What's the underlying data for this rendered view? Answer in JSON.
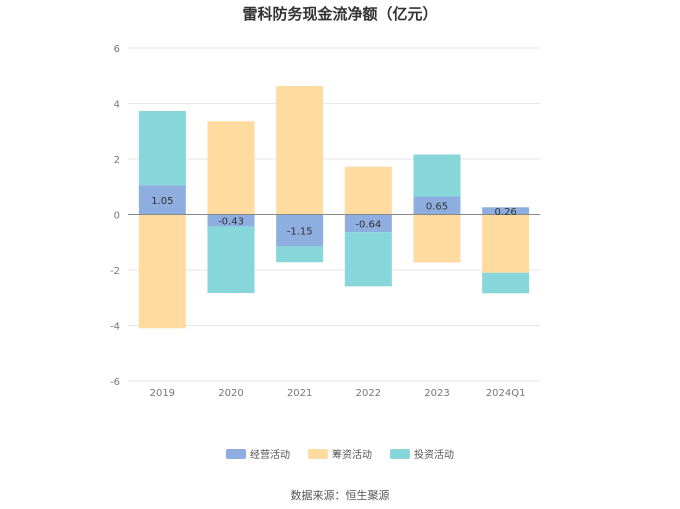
{
  "chart_data": {
    "type": "bar",
    "stacked": true,
    "title": "雷科防务现金流净额（亿元）",
    "categories": [
      "2019",
      "2020",
      "2021",
      "2022",
      "2023",
      "2024Q1"
    ],
    "series": [
      {
        "name": "经营活动",
        "color": "#8eaee0",
        "values": [
          1.05,
          -0.43,
          -1.15,
          -0.64,
          0.65,
          0.26
        ]
      },
      {
        "name": "筹资活动",
        "color": "#ffdba0",
        "values": [
          -4.1,
          3.36,
          4.63,
          1.72,
          -1.73,
          -2.1
        ]
      },
      {
        "name": "投资活动",
        "color": "#86d6da",
        "values": [
          2.68,
          -2.4,
          -0.57,
          -1.95,
          1.51,
          -0.74
        ]
      }
    ],
    "data_labels": [
      "1.05",
      "-0.43",
      "-1.15",
      "-0.64",
      "0.65",
      "0.26"
    ],
    "ylim": [
      -6,
      6
    ],
    "yticks": [
      6,
      4,
      2,
      0,
      -2,
      -4,
      -6
    ],
    "grid": true,
    "legend_position": "bottom"
  },
  "source": "数据来源：恒生聚源"
}
